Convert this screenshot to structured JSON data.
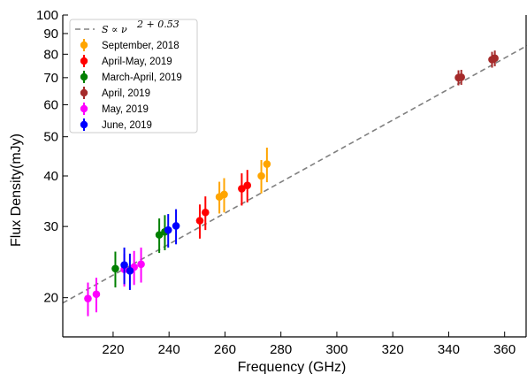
{
  "chart_data": {
    "type": "scatter",
    "title": "",
    "xlabel": "Frequency (GHz)",
    "ylabel": "Flux Density(mJy)",
    "xscale": "linear",
    "yscale": "log",
    "xlim": [
      202,
      368
    ],
    "ylim": [
      16,
      100
    ],
    "xticks": [
      220,
      240,
      260,
      280,
      300,
      320,
      340,
      360
    ],
    "yticks": [
      20,
      30,
      40,
      50,
      60,
      70,
      80,
      90,
      100
    ],
    "grid": false,
    "legend_position": "top-left",
    "fit": {
      "label": "S ∝ ν^(2+0.53)",
      "label_main": "S ∝ ν",
      "label_exp": "2 + 0.53",
      "style": "dashed",
      "color": "#808080",
      "points": [
        {
          "x": 202,
          "y": 19.4
        },
        {
          "x": 368,
          "y": 84.0
        }
      ]
    },
    "series": [
      {
        "name": "September, 2018",
        "color": "#FFA500",
        "points": [
          {
            "x": 258,
            "y": 35.5,
            "err": 3.2
          },
          {
            "x": 259.7,
            "y": 36.0,
            "err": 3.5
          },
          {
            "x": 273,
            "y": 40.0,
            "err": 3.8
          },
          {
            "x": 275,
            "y": 42.8,
            "err": 4.2
          }
        ]
      },
      {
        "name": "April-May, 2019",
        "color": "#FF0000",
        "points": [
          {
            "x": 251,
            "y": 31.0,
            "err": 3.0
          },
          {
            "x": 253,
            "y": 32.5,
            "err": 3.1
          },
          {
            "x": 266,
            "y": 37.2,
            "err": 3.4
          },
          {
            "x": 268,
            "y": 37.9,
            "err": 3.5
          }
        ]
      },
      {
        "name": "March-April, 2019",
        "color": "#008000",
        "points": [
          {
            "x": 220.8,
            "y": 23.6,
            "err": 2.4
          },
          {
            "x": 236.5,
            "y": 28.6,
            "err": 2.8
          },
          {
            "x": 238.5,
            "y": 29.1,
            "err": 2.9
          }
        ]
      },
      {
        "name": "April, 2019",
        "color": "#A52A2A",
        "points": [
          {
            "x": 343.5,
            "y": 70.0,
            "err": 3.0
          },
          {
            "x": 344.5,
            "y": 70.2,
            "err": 3.0
          },
          {
            "x": 355.5,
            "y": 77.6,
            "err": 3.5
          },
          {
            "x": 356.5,
            "y": 78.2,
            "err": 3.5
          }
        ]
      },
      {
        "name": "May, 2019",
        "color": "#FF00FF",
        "points": [
          {
            "x": 211,
            "y": 19.9,
            "err": 1.9
          },
          {
            "x": 214,
            "y": 20.4,
            "err": 2.0
          },
          {
            "x": 224,
            "y": 23.5,
            "err": 2.2
          },
          {
            "x": 227.5,
            "y": 23.8,
            "err": 2.3
          },
          {
            "x": 230,
            "y": 24.2,
            "err": 2.4
          }
        ]
      },
      {
        "name": "June, 2019",
        "color": "#0000FF",
        "points": [
          {
            "x": 224,
            "y": 24.1,
            "err": 2.5
          },
          {
            "x": 226,
            "y": 23.3,
            "err": 2.4
          },
          {
            "x": 239.7,
            "y": 29.4,
            "err": 2.8
          },
          {
            "x": 242.5,
            "y": 30.1,
            "err": 3.0
          }
        ]
      }
    ]
  }
}
